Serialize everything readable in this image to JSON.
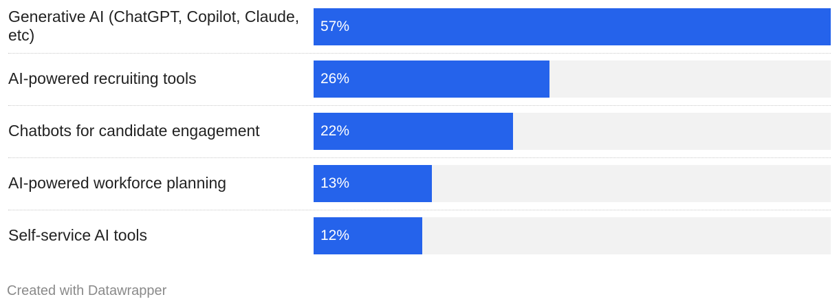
{
  "chart_data": {
    "type": "bar",
    "orientation": "horizontal",
    "categories": [
      "Generative AI (ChatGPT, Copilot, Claude, etc)",
      "AI-powered recruiting tools",
      "Chatbots for candidate engagement",
      "AI-powered workforce planning",
      "Self-service AI tools"
    ],
    "values": [
      57,
      26,
      22,
      13,
      12
    ],
    "value_labels": [
      "57%",
      "26%",
      "22%",
      "13%",
      "12%"
    ],
    "xlim": [
      0,
      57
    ],
    "grid": false,
    "legend": "none",
    "colors": {
      "bar": "#2563eb",
      "track": "#f2f2f2",
      "label_text": "#222222",
      "value_text": "#ffffff"
    }
  },
  "footer": {
    "credit": "Created with Datawrapper"
  }
}
